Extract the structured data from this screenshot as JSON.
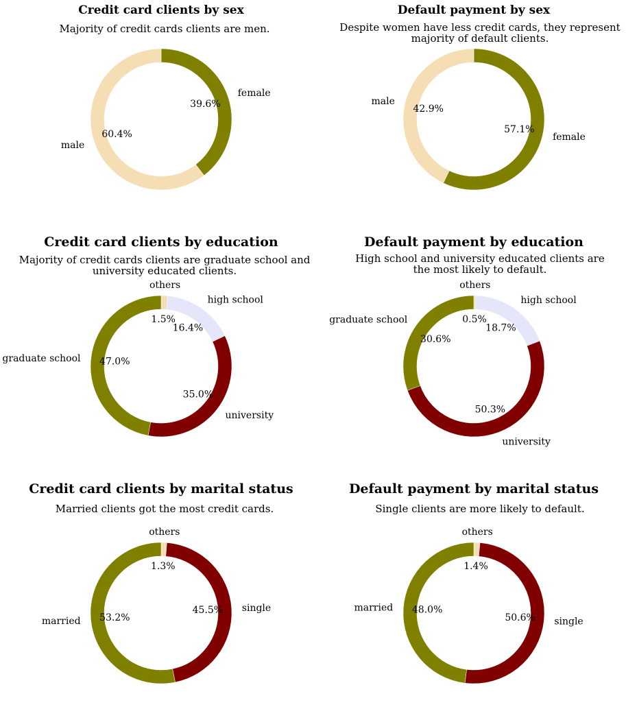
{
  "chart_data": [
    {
      "type": "pie",
      "style": "donut",
      "title": "Credit card clients by sex",
      "subtitle": [
        "Majority of credit cards clients are men."
      ],
      "categories": [
        "female",
        "male"
      ],
      "values": [
        39.6,
        60.4
      ],
      "colors": [
        "#808000",
        "#f5deb3"
      ],
      "value_labels": [
        "39.6%",
        "60.4%"
      ]
    },
    {
      "type": "pie",
      "style": "donut",
      "title": "Default payment by sex",
      "subtitle": [
        "Despite women have less credit cards, they represent",
        "majority of default clients."
      ],
      "categories": [
        "female",
        "male"
      ],
      "values": [
        57.1,
        42.9
      ],
      "colors": [
        "#808000",
        "#f5deb3"
      ],
      "value_labels": [
        "57.1%",
        "42.9%"
      ]
    },
    {
      "type": "pie",
      "style": "donut",
      "title": "Credit card clients by education",
      "subtitle": [
        "Majority of credit cards clients are graduate school and",
        "university educated clients."
      ],
      "categories": [
        "others",
        "high school",
        "university",
        "graduate school"
      ],
      "values": [
        1.5,
        16.4,
        35.0,
        47.0
      ],
      "colors": [
        "#f5deb3",
        "#e6e6fa",
        "#800000",
        "#808000"
      ],
      "value_labels": [
        "1.5%",
        "16.4%",
        "35.0%",
        "47.0%"
      ]
    },
    {
      "type": "pie",
      "style": "donut",
      "title": "Default payment by education",
      "subtitle": [
        "High school and university educated clients are",
        "the most likely to default."
      ],
      "categories": [
        "others",
        "high school",
        "university",
        "graduate school"
      ],
      "values": [
        0.5,
        18.7,
        50.3,
        30.6
      ],
      "colors": [
        "#f5deb3",
        "#e6e6fa",
        "#800000",
        "#808000"
      ],
      "value_labels": [
        "0.5%",
        "18.7%",
        "50.3%",
        "30.6%"
      ]
    },
    {
      "type": "pie",
      "style": "donut",
      "title": "Credit card clients by marital status",
      "subtitle": [
        "Married clients got the most credit cards."
      ],
      "categories": [
        "others",
        "single",
        "married"
      ],
      "values": [
        1.3,
        45.5,
        53.2
      ],
      "colors": [
        "#f5deb3",
        "#800000",
        "#808000"
      ],
      "value_labels": [
        "1.3%",
        "45.5%",
        "53.2%"
      ]
    },
    {
      "type": "pie",
      "style": "donut",
      "title": "Default payment by marital status",
      "subtitle": [
        "Single clients are more likely to default."
      ],
      "categories": [
        "others",
        "single",
        "married"
      ],
      "values": [
        1.4,
        50.6,
        48.0
      ],
      "colors": [
        "#f5deb3",
        "#800000",
        "#808000"
      ],
      "value_labels": [
        "1.4%",
        "50.6%",
        "48.0%"
      ]
    }
  ]
}
